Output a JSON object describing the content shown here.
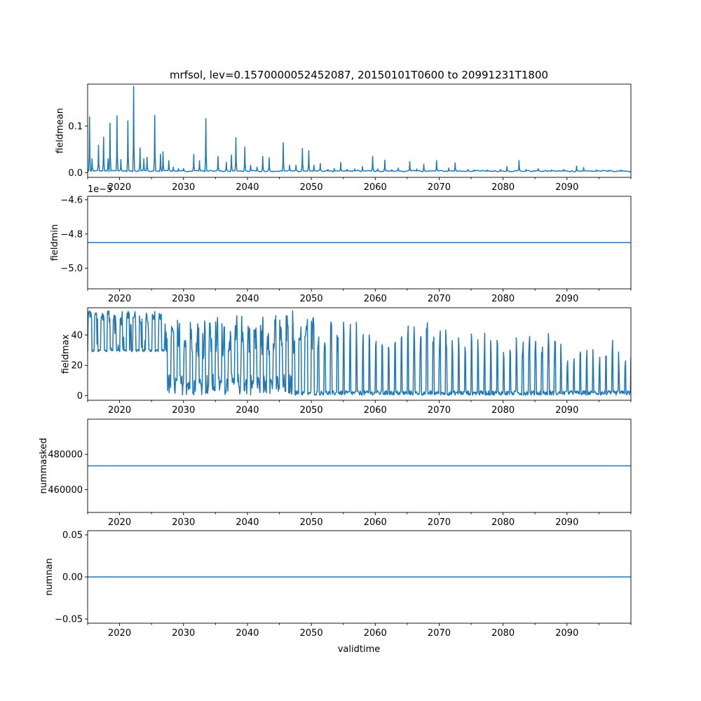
{
  "chart_data": {
    "type": "line",
    "title": "mrfsol, lev=0.1570000052452087, 20150101T0600 to 20991231T1800",
    "xlabel": "validtime",
    "xlim": [
      2015.0,
      2100.0
    ],
    "x_ticks": [
      2020,
      2030,
      2040,
      2050,
      2060,
      2070,
      2080,
      2090
    ],
    "x_tick_labels": [
      "2020",
      "2030",
      "2040",
      "2050",
      "2060",
      "2070",
      "2080",
      "2090"
    ],
    "panels": [
      {
        "id": "fieldmean",
        "ylabel": "fieldmean",
        "ylim": [
          -0.01,
          0.19
        ],
        "y_ticks": [
          0.0,
          0.1
        ],
        "y_tick_labels": [
          "0.0",
          "0.1"
        ],
        "offset_text": "",
        "series": {
          "name": "fieldmean",
          "baseline": 0.002,
          "peaks": [
            [
              2015.3,
              0.12
            ],
            [
              2015.7,
              0.03
            ],
            [
              2016.7,
              0.059
            ],
            [
              2017.5,
              0.076
            ],
            [
              2018.2,
              0.03
            ],
            [
              2018.5,
              0.106
            ],
            [
              2019.6,
              0.122
            ],
            [
              2020.2,
              0.028
            ],
            [
              2021.3,
              0.111
            ],
            [
              2022.2,
              0.185
            ],
            [
              2023.2,
              0.053
            ],
            [
              2023.8,
              0.03
            ],
            [
              2024.3,
              0.033
            ],
            [
              2025.5,
              0.123
            ],
            [
              2026.4,
              0.04
            ],
            [
              2026.8,
              0.045
            ],
            [
              2027.7,
              0.026
            ],
            [
              2028.4,
              0.012
            ],
            [
              2029.2,
              0.009
            ],
            [
              2030.0,
              0.009
            ],
            [
              2031.6,
              0.039
            ],
            [
              2032.5,
              0.026
            ],
            [
              2033.5,
              0.116
            ],
            [
              2035.4,
              0.035
            ],
            [
              2036.7,
              0.022
            ],
            [
              2037.5,
              0.038
            ],
            [
              2038.2,
              0.075
            ],
            [
              2039.6,
              0.055
            ],
            [
              2040.5,
              0.016
            ],
            [
              2041.5,
              0.012
            ],
            [
              2042.4,
              0.035
            ],
            [
              2043.4,
              0.032
            ],
            [
              2045.6,
              0.064
            ],
            [
              2046.6,
              0.016
            ],
            [
              2047.6,
              0.016
            ],
            [
              2048.6,
              0.052
            ],
            [
              2049.6,
              0.047
            ],
            [
              2050.4,
              0.016
            ],
            [
              2051.4,
              0.02
            ],
            [
              2052.6,
              0.007
            ],
            [
              2053.6,
              0.009
            ],
            [
              2054.6,
              0.022
            ],
            [
              2055.6,
              0.007
            ],
            [
              2056.8,
              0.008
            ],
            [
              2058.0,
              0.013
            ],
            [
              2059.6,
              0.035
            ],
            [
              2060.4,
              0.008
            ],
            [
              2061.5,
              0.027
            ],
            [
              2062.6,
              0.006
            ],
            [
              2063.6,
              0.01
            ],
            [
              2065.4,
              0.024
            ],
            [
              2066.5,
              0.008
            ],
            [
              2067.6,
              0.018
            ],
            [
              2069.6,
              0.026
            ],
            [
              2071.5,
              0.01
            ],
            [
              2072.5,
              0.021
            ],
            [
              2074.5,
              0.007
            ],
            [
              2075.5,
              0.006
            ],
            [
              2077.5,
              0.006
            ],
            [
              2079.6,
              0.007
            ],
            [
              2080.6,
              0.013
            ],
            [
              2082.5,
              0.026
            ],
            [
              2083.6,
              0.007
            ],
            [
              2085.5,
              0.009
            ],
            [
              2087.6,
              0.006
            ],
            [
              2089.5,
              0.007
            ],
            [
              2091.5,
              0.014
            ],
            [
              2092.6,
              0.011
            ],
            [
              2094.6,
              0.006
            ],
            [
              2096.5,
              0.005
            ],
            [
              2098.5,
              0.005
            ]
          ]
        }
      },
      {
        "id": "fieldmin",
        "ylabel": "fieldmin",
        "ylim": [
          -5.12,
          -4.58
        ],
        "y_ticks": [
          -5.0,
          -4.8,
          -4.6
        ],
        "y_tick_labels": [
          "−5.0",
          "−4.8",
          "−4.6"
        ],
        "offset_text": "1e−5",
        "series": {
          "name": "fieldmin",
          "constant": -4.85
        }
      },
      {
        "id": "fieldmax",
        "ylabel": "fieldmax",
        "ylim": [
          -3,
          58
        ],
        "y_ticks": [
          0,
          20,
          40
        ],
        "y_tick_labels": [
          "0",
          "20",
          "40"
        ],
        "offset_text": "",
        "series": {
          "name": "fieldmax",
          "max_value": 56,
          "early_floor": 29,
          "regime_change_year": 2027,
          "late_high_until": 2047,
          "late_high_peak_year": 2051,
          "end_peak": 19
        }
      },
      {
        "id": "nummasked",
        "ylabel": "nummasked",
        "ylim": [
          447000,
          500000
        ],
        "y_ticks": [
          460000,
          480000
        ],
        "y_tick_labels": [
          "460000",
          "480000"
        ],
        "offset_text": "",
        "series": {
          "name": "nummasked",
          "constant": 473500
        }
      },
      {
        "id": "numnan",
        "ylabel": "numnan",
        "ylim": [
          -0.055,
          0.055
        ],
        "y_ticks": [
          -0.05,
          0.0,
          0.05
        ],
        "y_tick_labels": [
          "−0.05",
          "0.00",
          "0.05"
        ],
        "offset_text": "",
        "series": {
          "name": "numnan",
          "constant": 0.0
        }
      }
    ]
  }
}
